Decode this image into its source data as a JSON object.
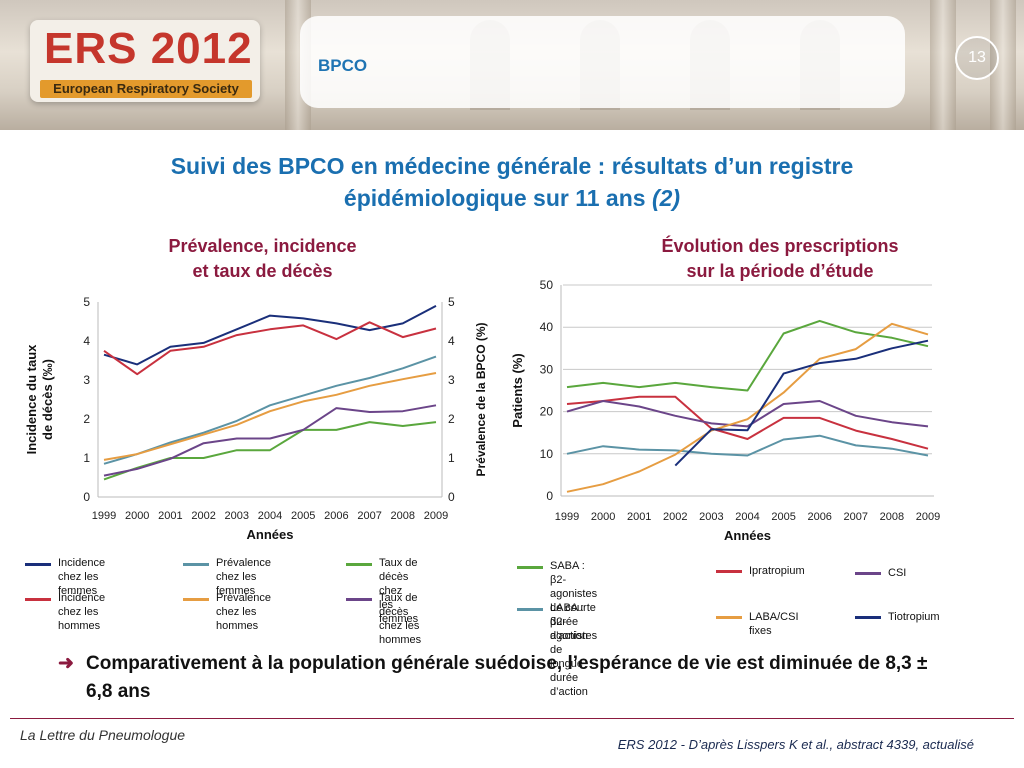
{
  "header": {
    "logo_title": "ERS 2012",
    "logo_subtitle": "European Respiratory Society",
    "section": "BPCO",
    "page_number": "13"
  },
  "slide": {
    "title_line1": "Suivi des BPCO en médecine générale : résultats d’un registre",
    "title_line2": "épidémiologique sur 11 ans",
    "title_suffix": "(2)"
  },
  "chart_left_title": [
    "Prévalence, incidence",
    "et taux de décès"
  ],
  "chart_right_title": [
    "Évolution des prescriptions",
    "sur la période d’étude"
  ],
  "legend_left": [
    {
      "line1": "Incidence",
      "line2": "chez les femmes",
      "color": "#1a2f7a"
    },
    {
      "line1": "Prévalence",
      "line2": "chez les femmes",
      "color": "#5b93a5"
    },
    {
      "line1": "Taux de décès",
      "line2": "chez les femmes",
      "color": "#5aa73d"
    },
    {
      "line1": "Incidence",
      "line2": "chez les hommes",
      "color": "#c8313f"
    },
    {
      "line1": "Prévalence",
      "line2": "chez les hommes",
      "color": "#e69d42"
    },
    {
      "line1": "Taux de décès",
      "line2": "chez les hommes",
      "color": "#6b4589"
    }
  ],
  "legend_right": [
    {
      "line1": "SABA : β2-agonistes",
      "line2": "de courte durée d’action",
      "color": "#5aa73d"
    },
    {
      "line1": "Ipratropium",
      "line2": "",
      "color": "#c8313f"
    },
    {
      "line1": "CSI",
      "line2": "",
      "color": "#6b4589"
    },
    {
      "line1": "LABA : β2-agonistes",
      "line2": "de longue durée d’action",
      "color": "#5b93a5"
    },
    {
      "line1": "LABA/CSI fixes",
      "line2": "",
      "color": "#e69d42"
    },
    {
      "line1": "Tiotropium",
      "line2": "",
      "color": "#1a2f7a"
    }
  ],
  "chart_data": [
    {
      "type": "line",
      "title": "Prévalence, incidence et taux de décès",
      "xlabel": "Années",
      "ylabel": "Incidence du taux de décès (‰)",
      "ylabel_right": "Prévalence de la BPCO (%)",
      "x": [
        1999,
        2000,
        2001,
        2002,
        2003,
        2004,
        2005,
        2006,
        2007,
        2008,
        2009
      ],
      "ylim": [
        0,
        5
      ],
      "yticks": [
        0,
        1,
        2,
        3,
        4,
        5
      ],
      "ylim_right": [
        0,
        5
      ],
      "yticks_right": [
        0,
        1,
        2,
        3,
        4,
        5
      ],
      "grid": false,
      "series": [
        {
          "name": "Incidence chez les femmes",
          "color": "#1a2f7a",
          "axis": "left",
          "values": [
            3.65,
            3.4,
            3.85,
            3.95,
            4.3,
            4.65,
            4.58,
            4.45,
            4.28,
            4.45,
            4.9
          ]
        },
        {
          "name": "Incidence chez les hommes",
          "color": "#c8313f",
          "axis": "left",
          "values": [
            3.75,
            3.15,
            3.75,
            3.85,
            4.15,
            4.3,
            4.4,
            4.05,
            4.48,
            4.1,
            4.32
          ]
        },
        {
          "name": "Prévalence chez les femmes",
          "color": "#5b93a5",
          "axis": "right",
          "values": [
            0.85,
            1.1,
            1.4,
            1.65,
            1.95,
            2.35,
            2.6,
            2.85,
            3.05,
            3.3,
            3.6
          ]
        },
        {
          "name": "Prévalence chez les hommes",
          "color": "#e69d42",
          "axis": "right",
          "values": [
            0.95,
            1.1,
            1.35,
            1.6,
            1.85,
            2.2,
            2.45,
            2.62,
            2.85,
            3.02,
            3.18
          ]
        },
        {
          "name": "Taux de décès chez les femmes",
          "color": "#5aa73d",
          "axis": "left",
          "values": [
            0.45,
            0.75,
            1.0,
            1.0,
            1.2,
            1.2,
            1.72,
            1.72,
            1.92,
            1.82,
            1.92
          ]
        },
        {
          "name": "Taux de décès chez les hommes",
          "color": "#6b4589",
          "axis": "left",
          "values": [
            0.55,
            0.72,
            0.98,
            1.38,
            1.5,
            1.5,
            1.72,
            2.28,
            2.18,
            2.2,
            2.35
          ]
        }
      ]
    },
    {
      "type": "line",
      "title": "Évolution des prescriptions sur la période d’étude",
      "xlabel": "Années",
      "ylabel": "Patients (%)",
      "x": [
        1999,
        2000,
        2001,
        2002,
        2003,
        2004,
        2005,
        2006,
        2007,
        2008,
        2009
      ],
      "ylim": [
        0,
        50
      ],
      "yticks": [
        0,
        10,
        20,
        30,
        40,
        50
      ],
      "grid": true,
      "series": [
        {
          "name": "SABA : β2-agonistes de courte durée d’action",
          "color": "#5aa73d",
          "values": [
            25.8,
            26.8,
            25.8,
            26.8,
            25.8,
            25.0,
            38.5,
            41.5,
            38.8,
            37.5,
            35.5
          ]
        },
        {
          "name": "Ipratropium",
          "color": "#c8313f",
          "values": [
            21.8,
            22.5,
            23.5,
            23.5,
            16.0,
            13.5,
            18.5,
            18.5,
            15.5,
            13.5,
            11.2
          ]
        },
        {
          "name": "CSI",
          "color": "#6b4589",
          "values": [
            20.0,
            22.5,
            21.2,
            19.0,
            17.2,
            16.5,
            21.8,
            22.5,
            19.0,
            17.5,
            16.5
          ]
        },
        {
          "name": "LABA : β2-agonistes de longue durée d’action",
          "color": "#5b93a5",
          "values": [
            10.0,
            11.8,
            11.0,
            10.8,
            10.0,
            9.6,
            13.4,
            14.3,
            12.0,
            11.2,
            9.6
          ]
        },
        {
          "name": "LABA/CSI fixes",
          "color": "#e69d42",
          "values": [
            1.0,
            2.8,
            5.8,
            9.8,
            15.5,
            18.2,
            24.5,
            32.5,
            34.8,
            40.8,
            38.3
          ]
        },
        {
          "name": "Tiotropium",
          "color": "#1a2f7a",
          "values": [
            null,
            null,
            null,
            7.2,
            15.8,
            15.6,
            29.0,
            31.5,
            32.5,
            35.0,
            36.8
          ]
        }
      ]
    }
  ],
  "conclusion": {
    "arrow": "➜",
    "text": "Comparativement à la population générale suédoise, l’espérance de vie est diminuée de 8,3 ± 6,8 ans"
  },
  "footer": {
    "left": "La Lettre du Pneumologue",
    "right": "ERS 2012 - D’après Lisspers K et al., abstract 4339, actualisé"
  }
}
